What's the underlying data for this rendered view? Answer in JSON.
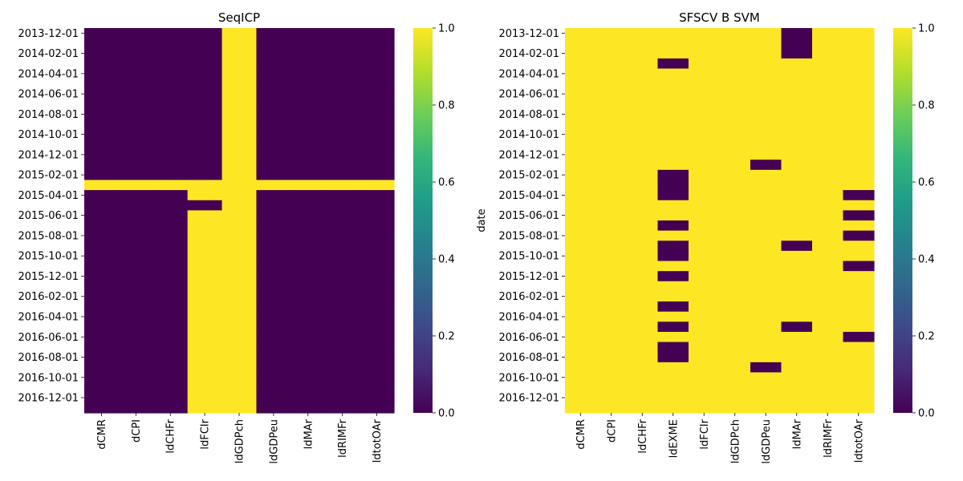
{
  "colors": {
    "low": "#440154",
    "high": "#fde725",
    "colormap": "viridis",
    "colormap_stops": [
      "#440154",
      "#482878",
      "#3e4989",
      "#31688e",
      "#26828e",
      "#1f9e89",
      "#35b779",
      "#6ece58",
      "#b5de2b",
      "#fde725"
    ]
  },
  "chart_data": [
    {
      "type": "heatmap",
      "title": "SeqICP",
      "ylabel": "",
      "x": [
        "dCMR",
        "dCPI",
        "ldCHFr",
        "ldFCIr",
        "ldGDPch",
        "ldGDPeu",
        "ldMAr",
        "ldRIMFr",
        "ldtotOAr"
      ],
      "y_ticks": [
        "2013-12-01",
        "2014-02-01",
        "2014-04-01",
        "2014-06-01",
        "2014-08-01",
        "2014-10-01",
        "2014-12-01",
        "2015-02-01",
        "2015-04-01",
        "2015-06-01",
        "2015-08-01",
        "2015-10-01",
        "2015-12-01",
        "2016-02-01",
        "2016-04-01",
        "2016-06-01",
        "2016-08-01",
        "2016-10-01",
        "2016-12-01"
      ],
      "n_rows": 38,
      "first_row": "2013-12-01",
      "row_step_months": 1,
      "default_value": 0,
      "full_columns": {
        "ldGDPch": 1
      },
      "full_rows": {
        "2015-03-01": 1
      },
      "cells": [
        {
          "col": "ldFCIr",
          "from": "2015-04-01",
          "to": "2017-01-01",
          "value": 1
        }
      ],
      "cell_exceptions": [
        {
          "col": "ldFCIr",
          "row": "2015-05-01",
          "value": 0
        }
      ],
      "colorbar": {
        "range": [
          0.0,
          1.0
        ],
        "ticks": [
          "0.0",
          "0.2",
          "0.4",
          "0.6",
          "0.8",
          "1.0"
        ]
      }
    },
    {
      "type": "heatmap",
      "title": "SFSCV B SVM",
      "ylabel": "date",
      "x": [
        "dCMR",
        "dCPI",
        "ldCHFr",
        "ldEXME",
        "ldFCIr",
        "ldGDPch",
        "ldGDPeu",
        "ldMAr",
        "ldRIMFr",
        "ldtotOAr"
      ],
      "y_ticks": [
        "2013-12-01",
        "2014-02-01",
        "2014-04-01",
        "2014-06-01",
        "2014-08-01",
        "2014-10-01",
        "2014-12-01",
        "2015-02-01",
        "2015-04-01",
        "2015-06-01",
        "2015-08-01",
        "2015-10-01",
        "2015-12-01",
        "2016-02-01",
        "2016-04-01",
        "2016-06-01",
        "2016-08-01",
        "2016-10-01",
        "2016-12-01"
      ],
      "n_rows": 38,
      "first_row": "2013-12-01",
      "row_step_months": 1,
      "default_value": 1,
      "zero_cells": [
        {
          "col": "ldMAr",
          "rows": [
            "2013-12-01",
            "2014-01-01",
            "2014-02-01",
            "2015-09-01",
            "2016-05-01"
          ]
        },
        {
          "col": "ldEXME",
          "rows": [
            "2014-03-01",
            "2015-02-01",
            "2015-03-01",
            "2015-04-01",
            "2015-07-01",
            "2015-09-01",
            "2015-10-01",
            "2015-12-01",
            "2016-03-01",
            "2016-05-01",
            "2016-07-01",
            "2016-08-01"
          ]
        },
        {
          "col": "ldGDPeu",
          "rows": [
            "2015-01-01",
            "2016-09-01"
          ]
        },
        {
          "col": "ldtotOAr",
          "rows": [
            "2015-04-01",
            "2015-06-01",
            "2015-08-01",
            "2015-11-01",
            "2016-06-01"
          ]
        }
      ],
      "colorbar": {
        "range": [
          0.0,
          1.0
        ],
        "ticks": [
          "0.0",
          "0.2",
          "0.4",
          "0.6",
          "0.8",
          "1.0"
        ]
      }
    }
  ]
}
